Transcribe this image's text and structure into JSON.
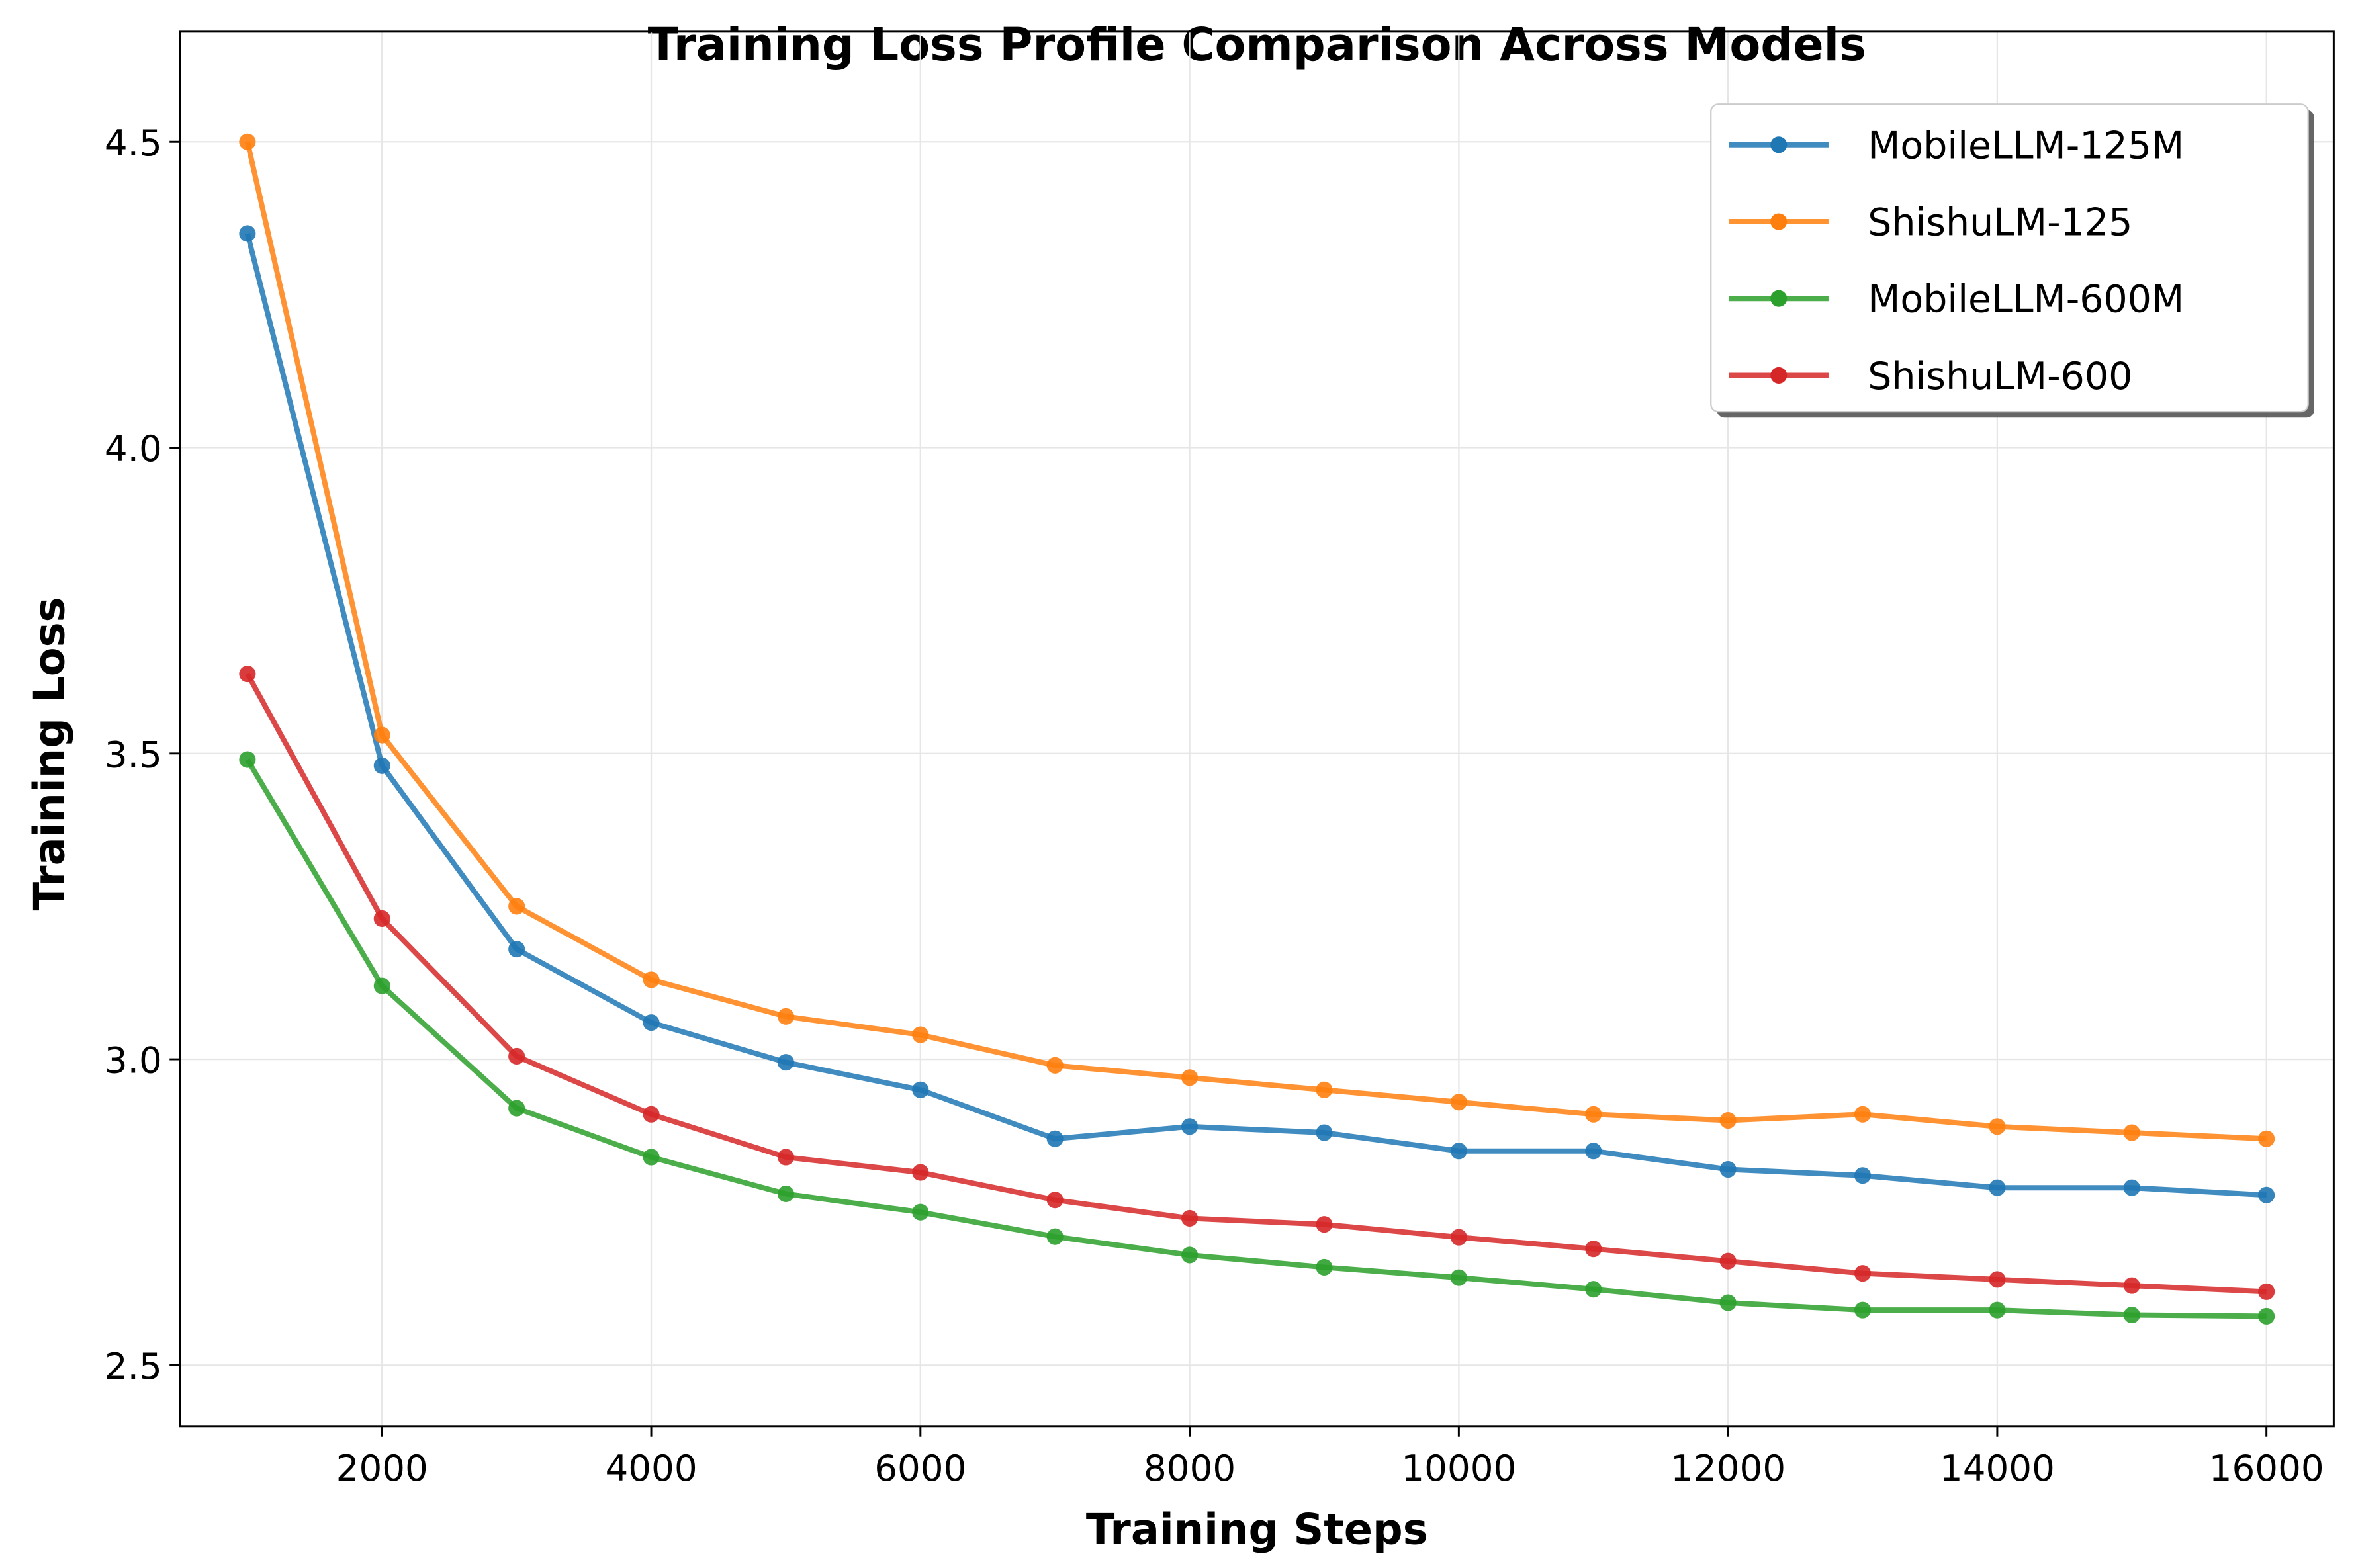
{
  "chart_data": {
    "type": "line",
    "title": "Training Loss Profile Comparison Across Models",
    "xlabel": "Training Steps",
    "ylabel": "Training Loss",
    "xlim": [
      500,
      16500
    ],
    "ylim": [
      2.4,
      4.68
    ],
    "xticks": [
      2000,
      4000,
      6000,
      8000,
      10000,
      12000,
      14000,
      16000
    ],
    "yticks": [
      2.5,
      3.0,
      3.5,
      4.0,
      4.5
    ],
    "ytick_labels": [
      "2.5",
      "3.0",
      "3.5",
      "4.0",
      "4.5"
    ],
    "grid": true,
    "legend_position": "top-right",
    "x": [
      1000,
      2000,
      3000,
      4000,
      5000,
      6000,
      7000,
      8000,
      9000,
      10000,
      11000,
      12000,
      13000,
      14000,
      15000,
      16000
    ],
    "series": [
      {
        "name": "MobileLLM-125M",
        "color": "#1f77b4",
        "values": [
          4.35,
          3.48,
          3.18,
          3.06,
          2.995,
          2.95,
          2.87,
          2.89,
          2.88,
          2.85,
          2.85,
          2.82,
          2.81,
          2.79,
          2.79,
          2.778
        ]
      },
      {
        "name": "ShishuLM-125",
        "color": "#ff7f0e",
        "values": [
          4.5,
          3.53,
          3.25,
          3.13,
          3.07,
          3.04,
          2.99,
          2.97,
          2.95,
          2.93,
          2.91,
          2.9,
          2.91,
          2.89,
          2.88,
          2.87
        ]
      },
      {
        "name": "MobileLLM-600M",
        "color": "#2ca02c",
        "values": [
          3.49,
          3.12,
          2.92,
          2.84,
          2.78,
          2.75,
          2.71,
          2.68,
          2.66,
          2.643,
          2.624,
          2.602,
          2.59,
          2.59,
          2.582,
          2.58
        ]
      },
      {
        "name": "ShishuLM-600",
        "color": "#d62728",
        "values": [
          3.63,
          3.23,
          3.005,
          2.91,
          2.84,
          2.815,
          2.77,
          2.74,
          2.73,
          2.709,
          2.69,
          2.67,
          2.65,
          2.64,
          2.63,
          2.62
        ]
      }
    ]
  }
}
